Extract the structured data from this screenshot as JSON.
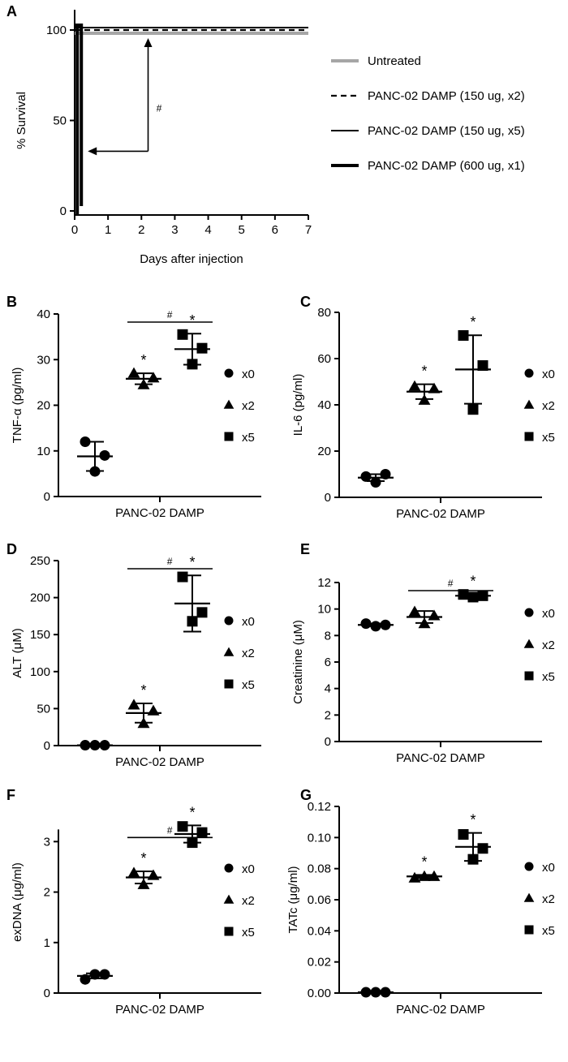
{
  "chart_data": [
    {
      "id": "A",
      "type": "line",
      "panel_label": "A",
      "xlabel": "Days after injection",
      "ylabel": "% Survival",
      "xlim": [
        0,
        7
      ],
      "ylim": [
        0,
        100
      ],
      "xticks": [
        0,
        1,
        2,
        3,
        4,
        5,
        6,
        7
      ],
      "yticks": [
        0,
        50,
        100
      ],
      "annotation": "#",
      "legend_position": "right",
      "series": [
        {
          "name": "Untreated",
          "style": "gray",
          "x": [
            0,
            7
          ],
          "y": [
            100,
            100
          ]
        },
        {
          "name": "PANC-02 DAMP (150 ug, x2)",
          "style": "dashed",
          "x": [
            0,
            7
          ],
          "y": [
            100,
            100
          ]
        },
        {
          "name": "PANC-02 DAMP (150 ug, x5)",
          "style": "solid",
          "x": [
            0,
            7
          ],
          "y": [
            100,
            100
          ]
        },
        {
          "name": "PANC-02 DAMP (600 ug, x1)",
          "style": "thick",
          "x": [
            0,
            0.2,
            0.2
          ],
          "y": [
            100,
            100,
            0
          ]
        }
      ]
    },
    {
      "id": "B",
      "type": "scatter",
      "panel_label": "B",
      "xlabel": "PANC-02 DAMP",
      "ylabel": "TNF-α (pg/ml)",
      "ylim": [
        0,
        40
      ],
      "yticks": [
        0,
        10,
        20,
        30,
        40
      ],
      "ytick_labels": [
        "0",
        "10",
        "20",
        "30",
        "40"
      ],
      "groups": [
        {
          "name": "x0",
          "marker": "circle",
          "values": [
            12,
            5.5,
            9
          ],
          "mean": 8.8,
          "sd": 3.2,
          "star": false
        },
        {
          "name": "x2",
          "marker": "triangle",
          "values": [
            27,
            24.5,
            26
          ],
          "mean": 25.8,
          "sd": 1.2,
          "star": true
        },
        {
          "name": "x5",
          "marker": "square",
          "values": [
            35.5,
            29,
            32.5
          ],
          "mean": 32.3,
          "sd": 3.4,
          "star": true
        }
      ],
      "bracket": "#"
    },
    {
      "id": "C",
      "type": "scatter",
      "panel_label": "C",
      "xlabel": "PANC-02 DAMP",
      "ylabel": "IL-6 (pg/ml)",
      "ylim": [
        0,
        80
      ],
      "yticks": [
        0,
        20,
        40,
        60,
        80
      ],
      "ytick_labels": [
        "0",
        "20",
        "40",
        "60",
        "80"
      ],
      "groups": [
        {
          "name": "x0",
          "marker": "circle",
          "values": [
            9,
            6.5,
            10
          ],
          "mean": 8.5,
          "sd": 1.5,
          "star": false
        },
        {
          "name": "x2",
          "marker": "triangle",
          "values": [
            48,
            42,
            47
          ],
          "mean": 45.7,
          "sd": 3.2,
          "star": true
        },
        {
          "name": "x5",
          "marker": "square",
          "values": [
            70,
            38,
            57
          ],
          "mean": 55.3,
          "sd": 14.8,
          "star": true
        }
      ],
      "bracket": null
    },
    {
      "id": "D",
      "type": "scatter",
      "panel_label": "D",
      "xlabel": "PANC-02 DAMP",
      "ylabel": "ALT (μM)",
      "ylim": [
        0,
        250
      ],
      "yticks": [
        0,
        50,
        100,
        150,
        200,
        250
      ],
      "ytick_labels": [
        "0",
        "50",
        "100",
        "150",
        "200",
        "250"
      ],
      "groups": [
        {
          "name": "x0",
          "marker": "circle",
          "values": [
            0.5,
            0.5,
            0.5
          ],
          "mean": 0.5,
          "sd": 0,
          "star": false
        },
        {
          "name": "x2",
          "marker": "triangle",
          "values": [
            55,
            30,
            47
          ],
          "mean": 44,
          "sd": 13,
          "star": true
        },
        {
          "name": "x5",
          "marker": "square",
          "values": [
            228,
            168,
            180
          ],
          "mean": 192,
          "sd": 38,
          "star": true
        }
      ],
      "bracket": "#"
    },
    {
      "id": "E",
      "type": "scatter",
      "panel_label": "E",
      "xlabel": "PANC-02 DAMP",
      "ylabel": "Creatinine (μM)",
      "ylim": [
        0,
        12
      ],
      "yticks": [
        0,
        2,
        4,
        6,
        8,
        10,
        12
      ],
      "ytick_labels": [
        "0",
        "2",
        "4",
        "6",
        "8",
        "10",
        "12"
      ],
      "groups": [
        {
          "name": "x0",
          "marker": "circle",
          "values": [
            8.9,
            8.7,
            8.8
          ],
          "mean": 8.8,
          "sd": 0.1,
          "star": false
        },
        {
          "name": "x2",
          "marker": "triangle",
          "values": [
            9.8,
            8.9,
            9.5
          ],
          "mean": 9.4,
          "sd": 0.45,
          "star": false
        },
        {
          "name": "x5",
          "marker": "square",
          "values": [
            11.1,
            10.9,
            11.0
          ],
          "mean": 11.0,
          "sd": 0.1,
          "star": true
        }
      ],
      "bracket": "#"
    },
    {
      "id": "F",
      "type": "scatter",
      "panel_label": "F",
      "xlabel": "PANC-02 DAMP",
      "ylabel": "exDNA (μg/ml)",
      "ylim": [
        0,
        3.6
      ],
      "yticks": [
        0,
        1,
        2,
        3
      ],
      "ytick_labels": [
        "0",
        "1",
        "2",
        "3"
      ],
      "groups": [
        {
          "name": "x0",
          "marker": "circle",
          "values": [
            0.27,
            0.37,
            0.37
          ],
          "mean": 0.34,
          "sd": 0.05,
          "star": false
        },
        {
          "name": "x2",
          "marker": "triangle",
          "values": [
            2.38,
            2.15,
            2.33
          ],
          "mean": 2.29,
          "sd": 0.12,
          "star": true
        },
        {
          "name": "x5",
          "marker": "square",
          "values": [
            3.3,
            2.98,
            3.18
          ],
          "mean": 3.15,
          "sd": 0.17,
          "star": true
        }
      ],
      "bracket": "#"
    },
    {
      "id": "G",
      "type": "scatter",
      "panel_label": "G",
      "xlabel": "PANC-02 DAMP",
      "ylabel": "TATc (μg/ml)",
      "ylim": [
        0,
        0.12
      ],
      "yticks": [
        0,
        0.02,
        0.04,
        0.06,
        0.08,
        0.1,
        0.12
      ],
      "ytick_labels": [
        "0.00",
        "0.02",
        "0.04",
        "0.06",
        "0.08",
        "0.10",
        "0.12"
      ],
      "groups": [
        {
          "name": "x0",
          "marker": "circle",
          "values": [
            0.0005,
            0.0005,
            0.0005
          ],
          "mean": 0.0005,
          "sd": 0,
          "star": false
        },
        {
          "name": "x2",
          "marker": "triangle",
          "values": [
            0.074,
            0.075,
            0.075
          ],
          "mean": 0.075,
          "sd": 0.001,
          "star": true
        },
        {
          "name": "x5",
          "marker": "square",
          "values": [
            0.102,
            0.086,
            0.093
          ],
          "mean": 0.094,
          "sd": 0.009,
          "star": true
        }
      ],
      "bracket": null
    }
  ],
  "legend_groups": [
    "x0",
    "x2",
    "x5"
  ]
}
